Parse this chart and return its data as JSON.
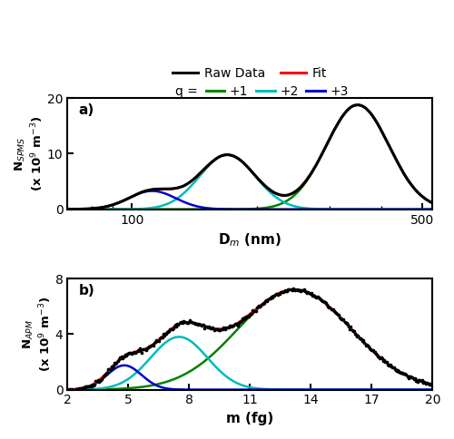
{
  "panel_a": {
    "title_label": "a)",
    "xlabel": "D$_m$ (nm)",
    "ylabel": "N$_{SPMS}$\n(x 10$^9$ m$^{-3}$)",
    "xmin": 70,
    "xmax": 530,
    "xticks": [
      100,
      500
    ],
    "ylim": [
      0,
      20
    ],
    "yticks": [
      0,
      10,
      20
    ],
    "q1": {
      "peak": 350,
      "sigma": 0.175,
      "amp": 18.8,
      "color": "#008000"
    },
    "q2": {
      "peak": 170,
      "sigma": 0.155,
      "amp": 9.8,
      "color": "#00bbbb"
    },
    "q3": {
      "peak": 112,
      "sigma": 0.13,
      "amp": 3.3,
      "color": "#0000cc"
    }
  },
  "panel_b": {
    "title_label": "b)",
    "xlabel": "m (fg)",
    "ylabel": "N$_{APM}$\n(x 10$^9$ m$^{-3}$)",
    "xlim": [
      2,
      20
    ],
    "xticks": [
      2,
      5,
      8,
      11,
      14,
      17,
      20
    ],
    "ylim": [
      0,
      8
    ],
    "yticks": [
      0,
      4,
      8
    ],
    "q1": {
      "peak": 13.2,
      "sigma": 2.8,
      "amp": 7.2,
      "color": "#008000"
    },
    "q2": {
      "peak": 7.5,
      "sigma": 1.4,
      "amp": 3.8,
      "color": "#00bbbb"
    },
    "q3": {
      "peak": 4.8,
      "sigma": 0.85,
      "amp": 1.75,
      "color": "#0000cc"
    }
  },
  "raw_color": "#000000",
  "fit_color": "#ff0000",
  "q_colors": [
    "#008000",
    "#00bbbb",
    "#0000cc"
  ],
  "background_color": "#ffffff",
  "figsize": [
    5.0,
    4.84
  ],
  "dpi": 100
}
